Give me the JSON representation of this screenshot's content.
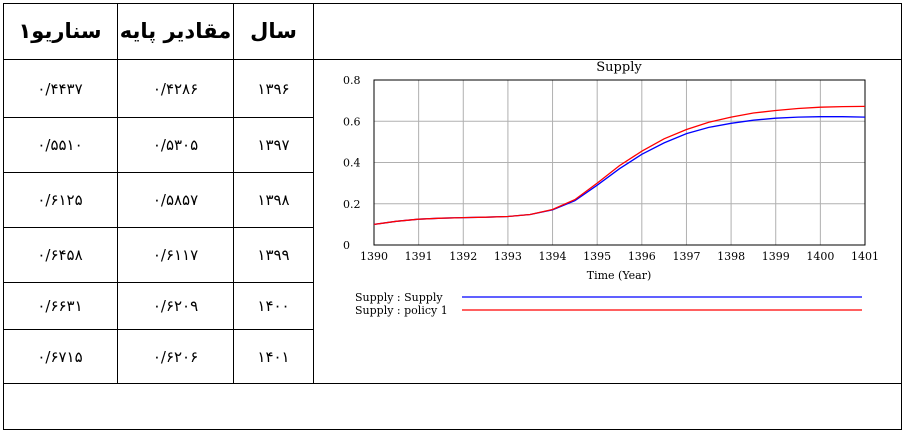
{
  "table": {
    "headers": {
      "year": "سال",
      "base": "مقادیر پایه",
      "scenario": "سناریو۱"
    },
    "rows": [
      {
        "year": "۱۳۹۶",
        "base": "۰/۴۲۸۶",
        "scenario": "۰/۴۴۳۷"
      },
      {
        "year": "۱۳۹۷",
        "base": "۰/۵۳۰۵",
        "scenario": "۰/۵۵۱۰"
      },
      {
        "year": "۱۳۹۸",
        "base": "۰/۵۸۵۷",
        "scenario": "۰/۶۱۲۵"
      },
      {
        "year": "۱۳۹۹",
        "base": "۰/۶۱۱۷",
        "scenario": "۰/۶۴۵۸"
      },
      {
        "year": "۱۴۰۰",
        "base": "۰/۶۲۰۹",
        "scenario": "۰/۶۶۳۱"
      },
      {
        "year": "۱۴۰۱",
        "base": "۰/۶۲۰۶",
        "scenario": "۰/۶۷۱۵"
      }
    ]
  },
  "chart_data": {
    "type": "line",
    "title": "Supply",
    "xlabel": "Time (Year)",
    "ylabel": "",
    "xlim": [
      1390,
      1401
    ],
    "ylim": [
      0,
      0.8
    ],
    "x_ticks": [
      "1390",
      "1391",
      "1392",
      "1393",
      "1394",
      "1395",
      "1396",
      "1397",
      "1398",
      "1399",
      "1400",
      "1401"
    ],
    "y_ticks": [
      "0",
      "0.2",
      "0.4",
      "0.6",
      "0.8"
    ],
    "grid": true,
    "legend_position": "bottom",
    "x": [
      1390,
      1390.5,
      1391,
      1391.5,
      1392,
      1392.5,
      1393,
      1393.5,
      1394,
      1394.5,
      1395,
      1395.5,
      1396,
      1396.5,
      1397,
      1397.5,
      1398,
      1398.5,
      1399,
      1399.5,
      1400,
      1400.5,
      1401
    ],
    "series": [
      {
        "name": "Supply : Supply",
        "color": "#0000ff",
        "values": [
          0.1,
          0.115,
          0.125,
          0.13,
          0.133,
          0.135,
          0.138,
          0.148,
          0.17,
          0.215,
          0.29,
          0.37,
          0.44,
          0.495,
          0.54,
          0.57,
          0.59,
          0.605,
          0.615,
          0.62,
          0.622,
          0.622,
          0.62
        ]
      },
      {
        "name": "Supply : policy 1",
        "color": "#ff0000",
        "values": [
          0.1,
          0.115,
          0.125,
          0.13,
          0.133,
          0.135,
          0.138,
          0.148,
          0.172,
          0.22,
          0.3,
          0.385,
          0.455,
          0.515,
          0.56,
          0.595,
          0.62,
          0.64,
          0.652,
          0.662,
          0.668,
          0.671,
          0.672
        ]
      }
    ]
  }
}
